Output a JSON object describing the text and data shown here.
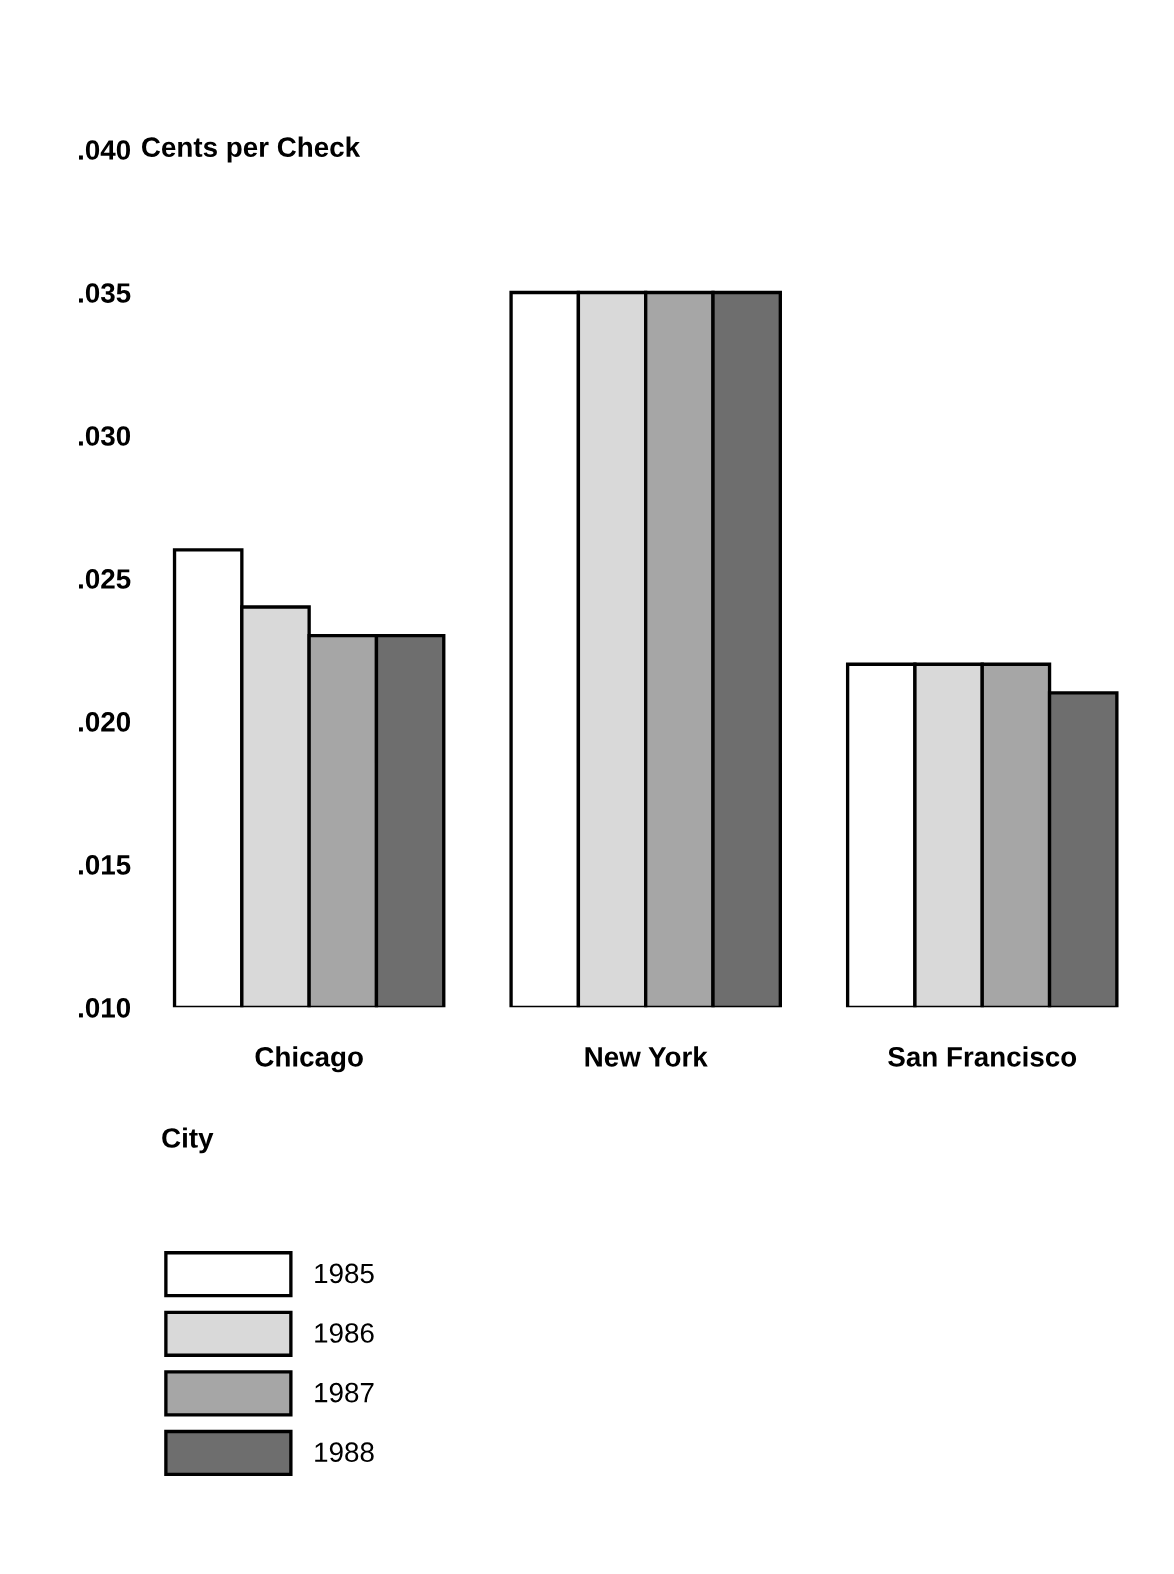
{
  "chart_data": {
    "type": "bar",
    "ylabel": "Cents per Check",
    "xlabel": "City",
    "categories": [
      "Chicago",
      "New York",
      "San Francisco"
    ],
    "series": [
      {
        "name": "1985",
        "color": "#ffffff",
        "values": [
          0.026,
          0.035,
          0.022
        ]
      },
      {
        "name": "1986",
        "color": "#d9d9d9",
        "values": [
          0.024,
          0.035,
          0.022
        ]
      },
      {
        "name": "1987",
        "color": "#a6a6a6",
        "values": [
          0.023,
          0.035,
          0.022
        ]
      },
      {
        "name": "1988",
        "color": "#6e6e6e",
        "values": [
          0.023,
          0.035,
          0.021
        ]
      }
    ],
    "ylim": [
      0.01,
      0.04
    ],
    "yticks": [
      {
        "value": 0.01,
        "label": ".010"
      },
      {
        "value": 0.015,
        "label": ".015"
      },
      {
        "value": 0.02,
        "label": ".020"
      },
      {
        "value": 0.025,
        "label": ".025"
      },
      {
        "value": 0.03,
        "label": ".030"
      },
      {
        "value": 0.035,
        "label": ".035"
      },
      {
        "value": 0.04,
        "label": ".040"
      }
    ],
    "grid": false,
    "legend": "bottom left"
  }
}
